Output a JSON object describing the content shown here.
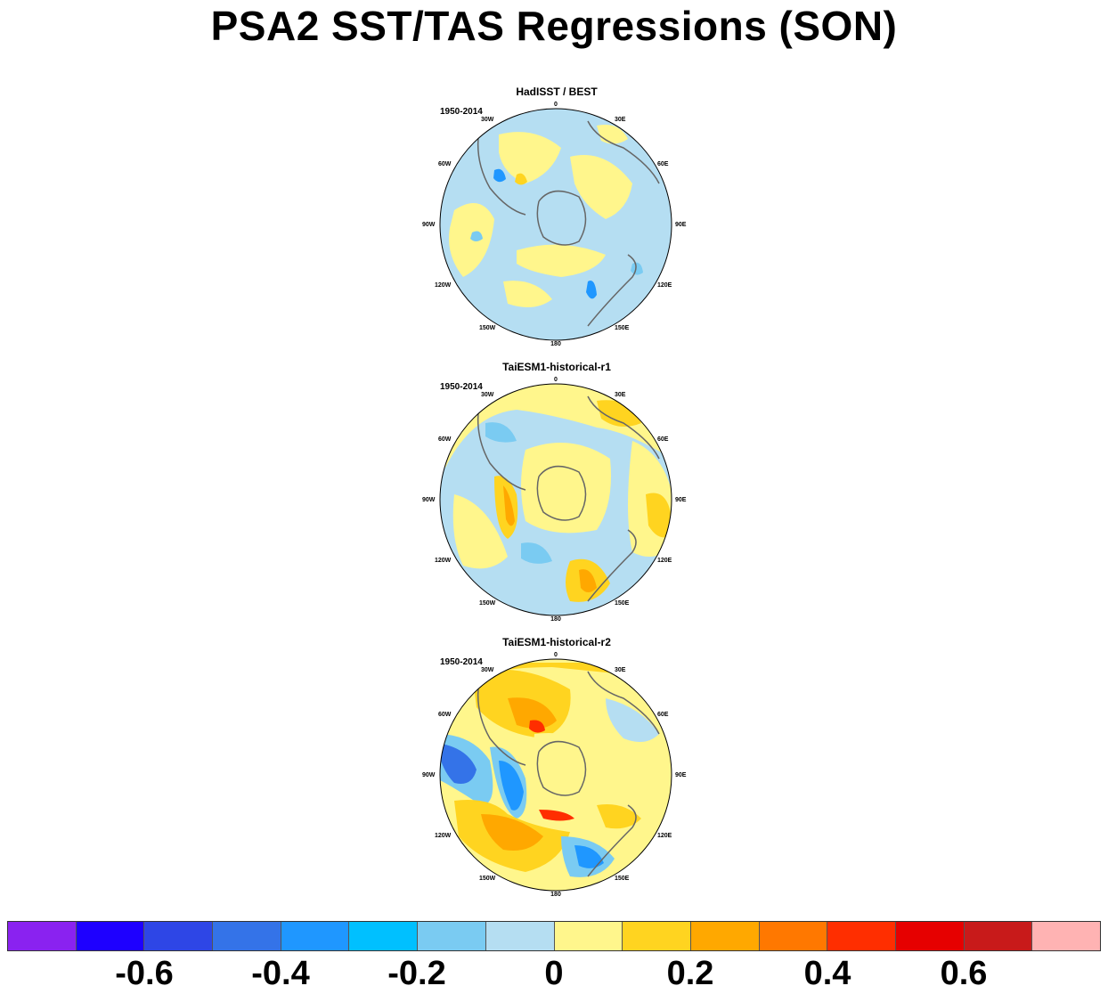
{
  "title": "PSA2 SST/TAS Regressions (SON)",
  "longitude_labels": {
    "top": "0",
    "e30": "30E",
    "e60": "60E",
    "e90": "90E",
    "e120": "120E",
    "e150": "150E",
    "bottom": "180",
    "w150": "150W",
    "w120": "120W",
    "w90": "90W",
    "w60": "60W",
    "w30": "30W"
  },
  "panels": [
    {
      "title": "HadISST / BEST",
      "period": "1950-2014",
      "style": "weak"
    },
    {
      "title": "TaiESM1-historical-r1",
      "period": "1950-2014",
      "style": "moderate"
    },
    {
      "title": "TaiESM1-historical-r2",
      "period": "1950-2014",
      "style": "strong"
    }
  ],
  "colorbar": {
    "colors": [
      "#8a22f0",
      "#1e00ff",
      "#2e46e6",
      "#3473e8",
      "#1f97ff",
      "#00c0ff",
      "#7acbf2",
      "#b5def2",
      "#fff68c",
      "#ffd420",
      "#ffa800",
      "#ff7800",
      "#ff2e00",
      "#e60000",
      "#c81a1a",
      "#ffb3b3"
    ],
    "labels": [
      "-0.6",
      "-0.4",
      "-0.2",
      "0",
      "0.2",
      "0.4",
      "0.6"
    ]
  }
}
